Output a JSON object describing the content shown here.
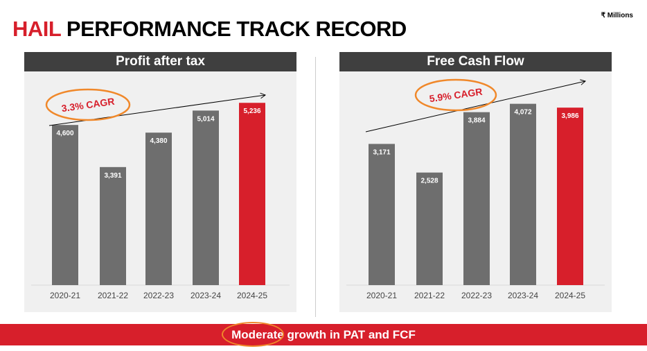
{
  "header": {
    "brand": "HAIL",
    "title": "PERFORMANCE TRACK RECORD",
    "units": "₹ Millions"
  },
  "colors": {
    "bar": "#6e6e6e",
    "highlight": "#d71f2b",
    "annotation": "#f0882a"
  },
  "chart_data": [
    {
      "type": "bar",
      "title": "Profit after tax",
      "categories": [
        "2020-21",
        "2021-22",
        "2022-23",
        "2023-24",
        "2024-25"
      ],
      "values": [
        4600,
        3391,
        4380,
        5014,
        5236
      ],
      "labels": [
        "4,600",
        "3,391",
        "4,380",
        "5,014",
        "5,236"
      ],
      "highlight_index": 4,
      "annotation": "3.3% CAGR",
      "ylim": [
        0,
        5500
      ]
    },
    {
      "type": "bar",
      "title": "Free Cash Flow",
      "categories": [
        "2020-21",
        "2021-22",
        "2022-23",
        "2023-24",
        "2024-25"
      ],
      "values": [
        3171,
        2528,
        3884,
        4072,
        3986
      ],
      "labels": [
        "3,171",
        "2,528",
        "3,884",
        "4,072",
        "3,986"
      ],
      "highlight_index": 4,
      "annotation": "5.9% CAGR",
      "ylim": [
        0,
        4300
      ]
    }
  ],
  "footer": {
    "highlight": "Moderate",
    "rest": " growth in PAT and FCF"
  }
}
